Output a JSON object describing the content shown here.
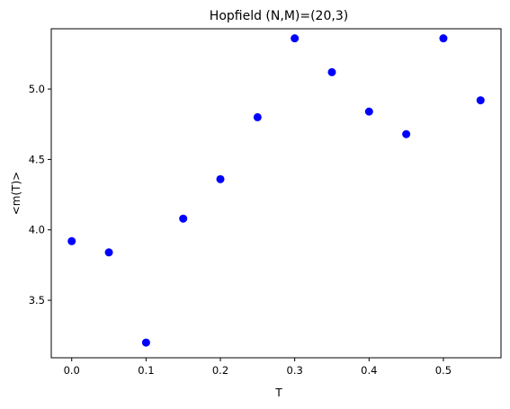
{
  "chart_data": {
    "type": "scatter",
    "title": "Hopfield (N,M)=(20,3)",
    "xlabel": "T",
    "ylabel": "<m(T)>",
    "x": [
      0.0,
      0.05,
      0.1,
      0.15,
      0.2,
      0.25,
      0.3,
      0.35,
      0.4,
      0.45,
      0.5,
      0.55
    ],
    "y": [
      3.92,
      3.84,
      3.2,
      4.08,
      4.36,
      4.8,
      5.36,
      5.12,
      4.84,
      4.68,
      5.36,
      4.92
    ],
    "xlim": [
      -0.0275,
      0.5775
    ],
    "ylim": [
      3.092,
      5.428
    ],
    "xticks": [
      0.0,
      0.1,
      0.2,
      0.3,
      0.4,
      0.5
    ],
    "xtick_labels": [
      "0.0",
      "0.1",
      "0.2",
      "0.3",
      "0.4",
      "0.5"
    ],
    "yticks": [
      3.5,
      4.0,
      4.5,
      5.0
    ],
    "ytick_labels": [
      "3.5",
      "4.0",
      "4.5",
      "5.0"
    ],
    "grid": false,
    "marker_color": "#0000ff"
  }
}
